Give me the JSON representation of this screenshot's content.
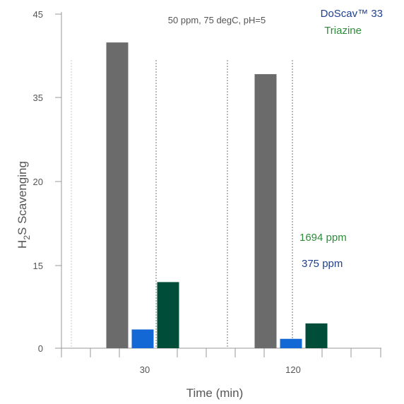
{
  "chart_data": {
    "type": "bar",
    "title": "",
    "subtitle": "50 ppm, 75 degC, pH=5",
    "xlabel": "Time (min)",
    "ylabel_main": "H",
    "ylabel_sub": "2",
    "ylabel_rest": "S Scavenging",
    "categories": [
      "30",
      "120"
    ],
    "ylim": [
      0,
      45
    ],
    "yticks": [
      "0",
      "15",
      "20",
      "35",
      "45"
    ],
    "grid": false,
    "legend_position": "top-right",
    "legend": [
      {
        "label": "DoScav™ 33",
        "color": "#1f3f8f"
      },
      {
        "label": "Triazine",
        "color": "#2e8b3a"
      }
    ],
    "series": [
      {
        "color": "#6b6b6b",
        "values": [
          41.6,
          37.8
        ]
      },
      {
        "color": "#1468d6",
        "values": [
          3.4,
          1.7
        ]
      },
      {
        "color": "#004d3a",
        "values": [
          12.0,
          4.5
        ]
      }
    ],
    "annotations": [
      {
        "text": "1694 ppm",
        "color": "#2e8b3a"
      },
      {
        "text": "375 ppm",
        "color": "#1f3f8f"
      }
    ]
  }
}
